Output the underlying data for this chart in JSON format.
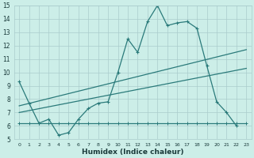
{
  "xlabel": "Humidex (Indice chaleur)",
  "x_values": [
    0,
    1,
    2,
    3,
    4,
    5,
    6,
    7,
    8,
    9,
    10,
    11,
    12,
    13,
    14,
    15,
    16,
    17,
    18,
    19,
    20,
    21,
    22,
    23
  ],
  "line1": [
    9.3,
    7.7,
    6.2,
    6.5,
    5.3,
    5.5,
    6.5,
    7.3,
    7.7,
    7.8,
    10.0,
    12.5,
    11.5,
    13.8,
    15.0,
    13.5,
    13.7,
    13.8,
    13.3,
    10.5,
    7.8,
    7.0,
    6.0,
    null
  ],
  "line2": [
    6.2,
    6.2,
    6.2,
    6.2,
    6.2,
    6.2,
    6.2,
    6.2,
    6.2,
    6.2,
    6.2,
    6.2,
    6.2,
    6.2,
    6.2,
    6.2,
    6.2,
    6.2,
    6.2,
    6.2,
    6.2,
    6.2,
    6.2,
    6.2
  ],
  "line3_x": [
    0,
    23
  ],
  "line3_y": [
    7.5,
    11.7
  ],
  "line4_x": [
    0,
    23
  ],
  "line4_y": [
    7.0,
    10.3
  ],
  "ylim": [
    5,
    15
  ],
  "xlim_min": -0.5,
  "xlim_max": 23.5,
  "yticks": [
    5,
    6,
    7,
    8,
    9,
    10,
    11,
    12,
    13,
    14,
    15
  ],
  "xticks": [
    0,
    1,
    2,
    3,
    4,
    5,
    6,
    7,
    8,
    9,
    10,
    11,
    12,
    13,
    14,
    15,
    16,
    17,
    18,
    19,
    20,
    21,
    22,
    23
  ],
  "line_color": "#2a7a7a",
  "bg_color": "#cceee8",
  "grid_color": "#aacccc",
  "font_color": "#1a3a3a"
}
